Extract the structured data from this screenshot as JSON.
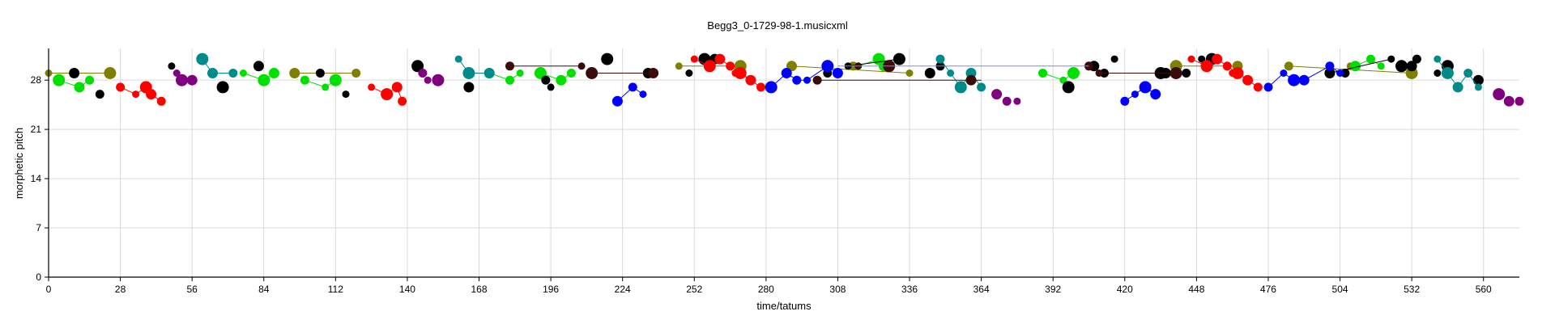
{
  "chart_data": {
    "type": "scatter",
    "title": "Begg3_0-1729-98-1.musicxml",
    "xlabel": "time/tatums",
    "ylabel": "morphetic pitch",
    "xlim": [
      0,
      574
    ],
    "ylim": [
      0,
      32.5
    ],
    "xticks": [
      0,
      28,
      56,
      84,
      112,
      140,
      168,
      196,
      224,
      252,
      280,
      308,
      336,
      364,
      392,
      420,
      448,
      476,
      504,
      532,
      560
    ],
    "yticks": [
      0,
      7,
      14,
      21,
      28
    ],
    "grid": true,
    "legend": "none",
    "series": [
      {
        "color": "#808000",
        "points": [
          [
            0,
            29
          ],
          [
            24,
            29
          ],
          [
            96,
            29
          ],
          [
            120,
            29
          ],
          [
            246,
            30
          ],
          [
            270,
            30
          ],
          [
            290,
            30
          ],
          [
            314,
            30
          ],
          [
            336,
            29
          ],
          [
            440,
            30
          ],
          [
            464,
            30
          ],
          [
            484,
            30
          ],
          [
            508,
            30
          ],
          [
            532,
            29
          ]
        ],
        "segments": [
          [
            [
              0,
              29
            ],
            [
              24,
              29
            ]
          ],
          [
            [
              96,
              29
            ],
            [
              120,
              29
            ]
          ],
          [
            [
              246,
              30
            ],
            [
              270,
              30
            ]
          ],
          [
            [
              290,
              30
            ],
            [
              336,
              29
            ]
          ],
          [
            [
              440,
              30
            ],
            [
              464,
              30
            ]
          ],
          [
            [
              484,
              30
            ],
            [
              532,
              29
            ]
          ]
        ]
      },
      {
        "color": "#00e000",
        "points": [
          [
            4,
            28
          ],
          [
            12,
            27
          ],
          [
            16,
            28
          ],
          [
            76,
            29
          ],
          [
            84,
            28
          ],
          [
            88,
            29
          ],
          [
            100,
            28
          ],
          [
            108,
            27
          ],
          [
            112,
            28
          ],
          [
            172,
            29
          ],
          [
            180,
            28
          ],
          [
            184,
            29
          ],
          [
            192,
            29
          ],
          [
            200,
            28
          ],
          [
            204,
            29
          ],
          [
            316,
            30
          ],
          [
            324,
            31
          ],
          [
            326,
            30
          ],
          [
            388,
            29
          ],
          [
            396,
            28
          ],
          [
            400,
            29
          ],
          [
            510,
            30
          ],
          [
            516,
            31
          ],
          [
            520,
            30
          ]
        ],
        "segments": [
          [
            [
              4,
              28
            ],
            [
              12,
              27
            ],
            [
              16,
              28
            ]
          ],
          [
            [
              76,
              29
            ],
            [
              84,
              28
            ],
            [
              88,
              29
            ]
          ],
          [
            [
              100,
              28
            ],
            [
              108,
              27
            ],
            [
              112,
              28
            ]
          ],
          [
            [
              172,
              29
            ],
            [
              180,
              28
            ],
            [
              184,
              29
            ]
          ],
          [
            [
              192,
              29
            ],
            [
              200,
              28
            ],
            [
              204,
              29
            ]
          ],
          [
            [
              316,
              30
            ],
            [
              324,
              31
            ],
            [
              326,
              30
            ]
          ],
          [
            [
              388,
              29
            ],
            [
              396,
              28
            ],
            [
              400,
              29
            ]
          ],
          [
            [
              510,
              30
            ],
            [
              516,
              31
            ],
            [
              520,
              30
            ]
          ]
        ]
      },
      {
        "color": "#000000",
        "points": [
          [
            10,
            29
          ],
          [
            20,
            26
          ],
          [
            48,
            30
          ],
          [
            68,
            27
          ],
          [
            82,
            30
          ],
          [
            106,
            29
          ],
          [
            116,
            26
          ],
          [
            144,
            30
          ],
          [
            164,
            27
          ],
          [
            194,
            28
          ],
          [
            196,
            27
          ],
          [
            218,
            31
          ],
          [
            234,
            29
          ],
          [
            236,
            29
          ],
          [
            250,
            29
          ],
          [
            256,
            31
          ],
          [
            260,
            31
          ],
          [
            304,
            29
          ],
          [
            312,
            30
          ],
          [
            332,
            31
          ],
          [
            344,
            29
          ],
          [
            348,
            30
          ],
          [
            360,
            28
          ],
          [
            398,
            27
          ],
          [
            408,
            30
          ],
          [
            412,
            29
          ],
          [
            416,
            31
          ],
          [
            434,
            29
          ],
          [
            436,
            29
          ],
          [
            444,
            29
          ],
          [
            450,
            31
          ],
          [
            454,
            31
          ],
          [
            500,
            29
          ],
          [
            506,
            29
          ],
          [
            524,
            31
          ],
          [
            528,
            30
          ],
          [
            532,
            30
          ],
          [
            534,
            31
          ],
          [
            542,
            29
          ],
          [
            546,
            30
          ],
          [
            558,
            28
          ]
        ],
        "segments": [
          [
            [
              312,
              30
            ],
            [
              332,
              31
            ]
          ],
          [
            [
              500,
              29
            ],
            [
              524,
              31
            ]
          ]
        ]
      },
      {
        "color": "#ff0000",
        "points": [
          [
            28,
            27
          ],
          [
            34,
            26
          ],
          [
            38,
            27
          ],
          [
            40,
            26
          ],
          [
            44,
            25
          ],
          [
            126,
            27
          ],
          [
            132,
            26
          ],
          [
            136,
            27
          ],
          [
            138,
            25
          ],
          [
            252,
            31
          ],
          [
            258,
            30
          ],
          [
            262,
            31
          ],
          [
            266,
            30
          ],
          [
            268,
            29
          ],
          [
            270,
            29
          ],
          [
            274,
            28
          ],
          [
            278,
            27
          ],
          [
            446,
            31
          ],
          [
            452,
            30
          ],
          [
            456,
            31
          ],
          [
            460,
            30
          ],
          [
            462,
            29
          ],
          [
            464,
            29
          ],
          [
            468,
            28
          ],
          [
            472,
            27
          ]
        ],
        "segments": [
          [
            [
              28,
              27
            ],
            [
              34,
              26
            ],
            [
              38,
              27
            ],
            [
              40,
              26
            ],
            [
              44,
              25
            ]
          ],
          [
            [
              126,
              27
            ],
            [
              132,
              26
            ],
            [
              136,
              27
            ],
            [
              138,
              25
            ]
          ],
          [
            [
              252,
              31
            ],
            [
              258,
              30
            ],
            [
              262,
              31
            ],
            [
              266,
              30
            ],
            [
              270,
              29
            ],
            [
              274,
              28
            ],
            [
              278,
              27
            ]
          ],
          [
            [
              446,
              31
            ],
            [
              452,
              30
            ],
            [
              456,
              31
            ],
            [
              460,
              30
            ],
            [
              464,
              29
            ],
            [
              468,
              28
            ],
            [
              472,
              27
            ]
          ]
        ]
      },
      {
        "color": "#800080",
        "points": [
          [
            50,
            29
          ],
          [
            52,
            28
          ],
          [
            56,
            28
          ],
          [
            146,
            29
          ],
          [
            148,
            28
          ],
          [
            152,
            28
          ],
          [
            370,
            26
          ],
          [
            374,
            25
          ],
          [
            378,
            25
          ],
          [
            566,
            26
          ],
          [
            570,
            25
          ],
          [
            574,
            25
          ]
        ],
        "segments": [
          [
            [
              50,
              29
            ],
            [
              52,
              28
            ],
            [
              56,
              28
            ]
          ]
        ]
      },
      {
        "color": "#008b8b",
        "points": [
          [
            60,
            31
          ],
          [
            64,
            29
          ],
          [
            72,
            29
          ],
          [
            160,
            31
          ],
          [
            164,
            29
          ],
          [
            172,
            29
          ],
          [
            348,
            31
          ],
          [
            352,
            29
          ],
          [
            356,
            27
          ],
          [
            360,
            29
          ],
          [
            364,
            27
          ],
          [
            542,
            31
          ],
          [
            546,
            29
          ],
          [
            550,
            27
          ],
          [
            554,
            29
          ],
          [
            558,
            27
          ]
        ],
        "segments": [
          [
            [
              60,
              31
            ],
            [
              64,
              29
            ],
            [
              72,
              29
            ]
          ],
          [
            [
              160,
              31
            ],
            [
              164,
              29
            ],
            [
              172,
              29
            ]
          ],
          [
            [
              348,
              31
            ],
            [
              352,
              29
            ],
            [
              356,
              27
            ],
            [
              360,
              29
            ],
            [
              364,
              27
            ]
          ],
          [
            [
              542,
              31
            ],
            [
              546,
              29
            ],
            [
              550,
              27
            ],
            [
              554,
              29
            ],
            [
              558,
              27
            ]
          ]
        ]
      },
      {
        "color": "#0000ff",
        "points": [
          [
            222,
            25
          ],
          [
            228,
            27
          ],
          [
            232,
            26
          ],
          [
            282,
            27
          ],
          [
            288,
            29
          ],
          [
            292,
            28
          ],
          [
            296,
            28
          ],
          [
            304,
            30
          ],
          [
            308,
            29
          ],
          [
            420,
            25
          ],
          [
            424,
            26
          ],
          [
            428,
            27
          ],
          [
            432,
            26
          ],
          [
            476,
            27
          ],
          [
            482,
            29
          ],
          [
            486,
            28
          ],
          [
            490,
            28
          ],
          [
            500,
            30
          ],
          [
            504,
            29
          ]
        ],
        "segments": [
          [
            [
              222,
              25
            ],
            [
              228,
              27
            ],
            [
              232,
              26
            ]
          ],
          [
            [
              282,
              27
            ],
            [
              288,
              29
            ],
            [
              292,
              28
            ],
            [
              296,
              28
            ],
            [
              304,
              30
            ],
            [
              308,
              29
            ]
          ],
          [
            [
              420,
              25
            ],
            [
              428,
              27
            ],
            [
              432,
              26
            ]
          ],
          [
            [
              476,
              27
            ],
            [
              482,
              29
            ],
            [
              486,
              28
            ],
            [
              490,
              28
            ],
            [
              500,
              30
            ],
            [
              504,
              29
            ]
          ]
        ]
      },
      {
        "color": "#3b0a0a",
        "points": [
          [
            180,
            30
          ],
          [
            208,
            30
          ],
          [
            212,
            29
          ],
          [
            236,
            29
          ],
          [
            300,
            28
          ],
          [
            316,
            30
          ],
          [
            328,
            30
          ],
          [
            360,
            28
          ],
          [
            406,
            30
          ],
          [
            410,
            29
          ],
          [
            440,
            29
          ]
        ],
        "segments": [
          [
            [
              180,
              30
            ],
            [
              208,
              30
            ]
          ],
          [
            [
              212,
              29
            ],
            [
              236,
              29
            ]
          ],
          [
            [
              300,
              28
            ],
            [
              364,
              28
            ]
          ],
          [
            [
              410,
              29
            ],
            [
              440,
              29
            ]
          ]
        ]
      },
      {
        "color": "#8080ff",
        "points": [],
        "segments": [
          [
            [
              308,
              30
            ],
            [
              406,
              30
            ]
          ]
        ]
      }
    ]
  }
}
